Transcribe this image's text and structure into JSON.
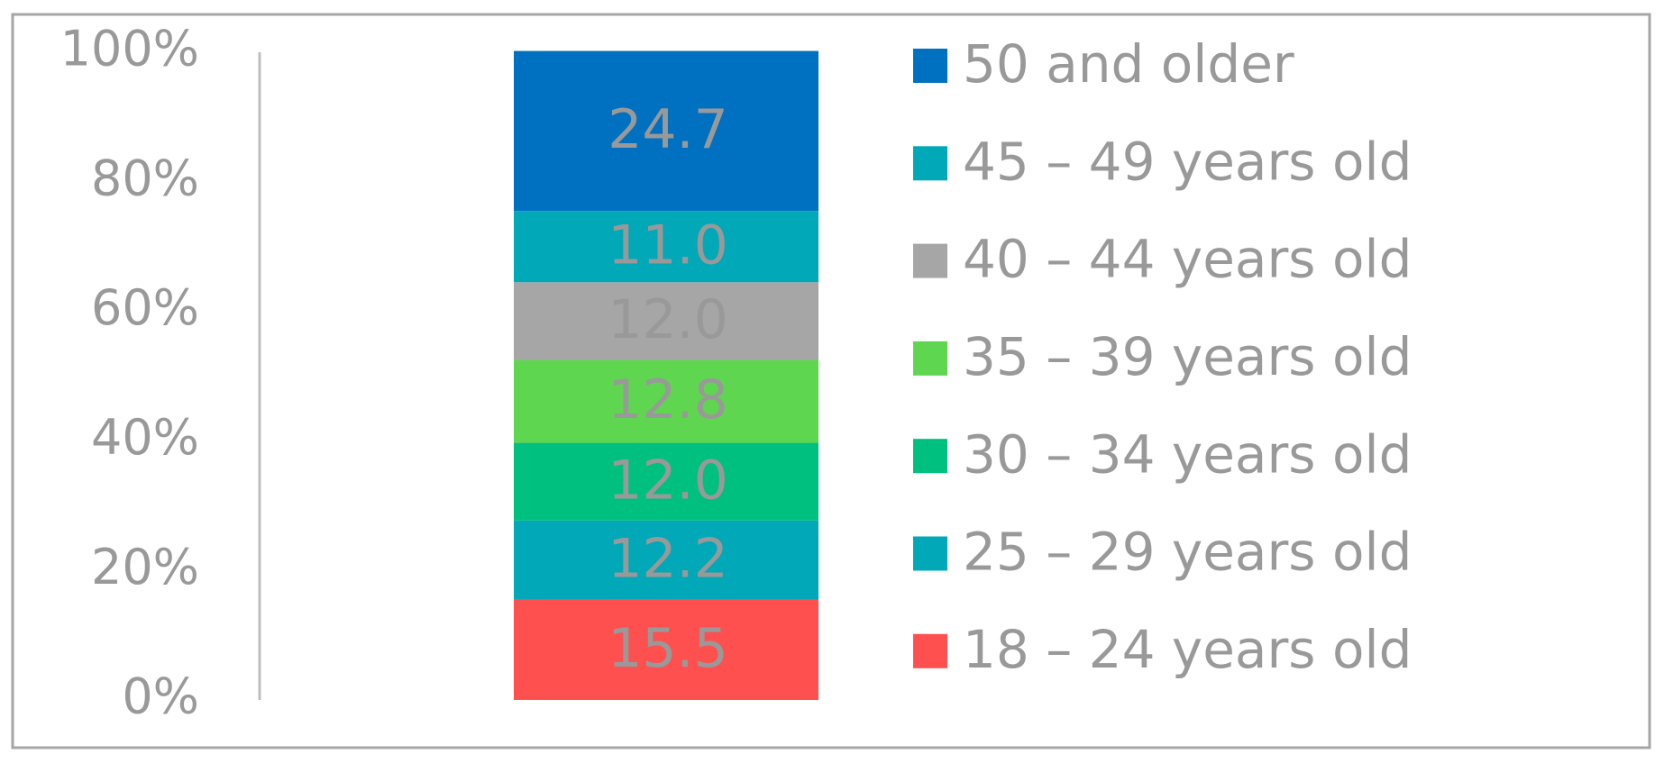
{
  "chart_data": {
    "type": "stacked-bar",
    "categories": [
      null
    ],
    "series": [
      {
        "name": "18 – 24 years old",
        "color": "#ff5050",
        "values": [
          15.5
        ]
      },
      {
        "name": "25 – 29 years old",
        "color": "#00a8b8",
        "values": [
          12.2
        ]
      },
      {
        "name": "30 – 34 years old",
        "color": "#00c07f",
        "values": [
          12.0
        ],
        "value_labels": [
          "12.0"
        ]
      },
      {
        "name": "35 – 39 years old",
        "color": "#5fd650",
        "values": [
          12.8
        ]
      },
      {
        "name": "40 – 44 years old",
        "color": "#a6a6a6",
        "values": [
          12.0
        ],
        "value_labels": [
          "12.0"
        ]
      },
      {
        "name": "45 – 49 years old",
        "color": "#00a8b8",
        "values": [
          11.0
        ],
        "value_labels": [
          "11.0"
        ]
      },
      {
        "name": "50 and older",
        "color": "#0070c0",
        "values": [
          24.7
        ]
      }
    ],
    "ylim": [
      0,
      100
    ],
    "yticks": [
      {
        "value": 0,
        "label": "0%"
      },
      {
        "value": 20,
        "label": "20%"
      },
      {
        "value": 40,
        "label": "40%"
      },
      {
        "value": 60,
        "label": "60%"
      },
      {
        "value": 80,
        "label": "80%"
      },
      {
        "value": 100,
        "label": "100%"
      }
    ],
    "legend": "right"
  }
}
